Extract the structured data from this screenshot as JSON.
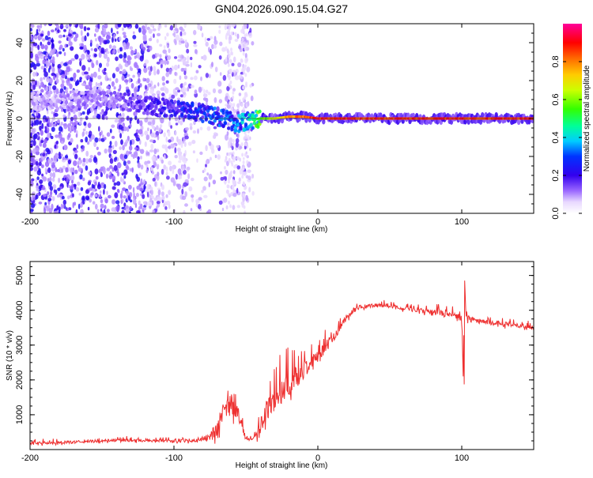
{
  "title": "GN04.2026.090.15.04.G27",
  "colors": {
    "snr_line": "#ee3030",
    "zero_line": "#333333"
  },
  "chart_data": [
    {
      "type": "heatmap",
      "xlabel": "Height of straight line (km)",
      "ylabel": "Frequency (Hz)",
      "xlim": [
        -200,
        150
      ],
      "ylim": [
        -50,
        50
      ],
      "xticks": [
        -200,
        -100,
        0,
        100
      ],
      "yticks": [
        -40,
        -20,
        0,
        20,
        40
      ],
      "colorbar": {
        "label": "Normalized spectral amplitude",
        "range": [
          0,
          1
        ],
        "ticks": [
          0.0,
          0.2,
          0.4,
          0.6,
          0.8
        ]
      },
      "ridge": {
        "description_points_x": [
          -200,
          -170,
          -140,
          -120,
          -100,
          -80,
          -65,
          -55,
          -48,
          -40,
          -30,
          -20,
          -10,
          0,
          50,
          100,
          150
        ],
        "frequency_hz": [
          9,
          10,
          10,
          7,
          5,
          3,
          0,
          -3,
          -1,
          0,
          0,
          1,
          1,
          0,
          0,
          0,
          0
        ],
        "amplitude": [
          0.1,
          0.12,
          0.15,
          0.2,
          0.25,
          0.3,
          0.35,
          0.35,
          0.45,
          0.6,
          0.7,
          0.85,
          0.9,
          0.95,
          0.95,
          0.95,
          0.95
        ]
      }
    },
    {
      "type": "line",
      "xlabel": "Height of straight line (km)",
      "ylabel": "SNR (10 * v/v)",
      "xlim": [
        -200,
        150
      ],
      "ylim": [
        0,
        5400
      ],
      "xticks": [
        -200,
        -100,
        0,
        100
      ],
      "yticks": [
        1000,
        2000,
        3000,
        4000,
        5000
      ],
      "series": [
        {
          "name": "SNR",
          "x": [
            -200,
            -180,
            -160,
            -140,
            -120,
            -100,
            -90,
            -80,
            -75,
            -70,
            -65,
            -60,
            -55,
            -50,
            -45,
            -40,
            -35,
            -30,
            -25,
            -20,
            -15,
            -10,
            -5,
            0,
            5,
            10,
            15,
            20,
            25,
            30,
            40,
            50,
            60,
            70,
            80,
            90,
            95,
            100,
            101,
            102,
            103,
            104,
            105,
            110,
            120,
            130,
            140,
            150
          ],
          "y": [
            180,
            200,
            230,
            270,
            260,
            250,
            260,
            300,
            380,
            600,
            1100,
            1300,
            1000,
            300,
            280,
            600,
            1200,
            1500,
            1700,
            1900,
            2100,
            2300,
            2500,
            2700,
            2900,
            3200,
            3500,
            3800,
            4000,
            4100,
            4150,
            4120,
            4050,
            4000,
            3950,
            3900,
            3850,
            3800,
            2100,
            4600,
            3900,
            3800,
            3750,
            3700,
            3650,
            3600,
            3550,
            3500
          ],
          "noise_amplitude": [
            70,
            70,
            70,
            75,
            70,
            70,
            80,
            120,
            200,
            400,
            500,
            500,
            350,
            90,
            100,
            450,
            550,
            600,
            600,
            600,
            550,
            450,
            400,
            350,
            300,
            250,
            200,
            150,
            130,
            100,
            90,
            90,
            100,
            110,
            130,
            150,
            180,
            300,
            0,
            400,
            300,
            200,
            150,
            130,
            120,
            120,
            110,
            100
          ]
        }
      ]
    }
  ]
}
